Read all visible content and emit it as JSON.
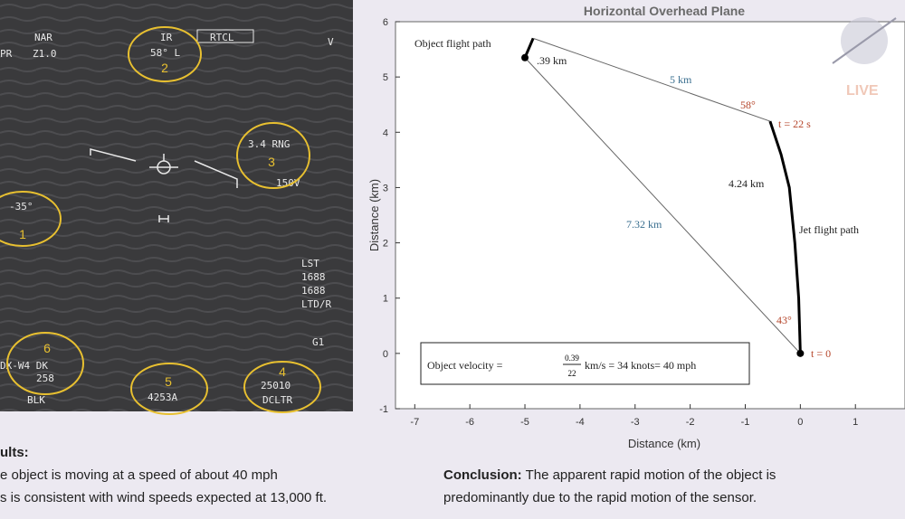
{
  "hud": {
    "texts": [
      "NAR",
      "Z1.0",
      "PR",
      "IR",
      "58° L",
      "RTCL",
      "V",
      "3.4 RNG",
      "150V",
      "-35°",
      "LST",
      "1688",
      "1688",
      "LTD/R",
      "G1",
      "DX-W4 DK",
      "258",
      "BLK",
      "4253A",
      "25010",
      "DCLTR"
    ],
    "circles": [
      "1",
      "2",
      "3",
      "4",
      "5",
      "6"
    ]
  },
  "chart_data": {
    "type": "line",
    "title": "Horizontal Overhead Plane",
    "x_label": "Distance (km)",
    "y_label": "Distance (km)",
    "xlim": [
      -7.35,
      1.9
    ],
    "ylim": [
      -1,
      6
    ],
    "xticks": [
      -7,
      -6,
      -5,
      -4,
      -3,
      -2,
      -1,
      0,
      1
    ],
    "yticks": [
      -1,
      0,
      1,
      2,
      3,
      4,
      5,
      6
    ],
    "series": [
      {
        "color": "#000000",
        "x": [
          0,
          -0.03,
          -0.1,
          -0.2,
          -0.35,
          -0.55
        ],
        "values": [
          0,
          1,
          2,
          3,
          3.6,
          4.2
        ]
      },
      {
        "color": "#000000",
        "x": [
          -5,
          -4.85
        ],
        "values": [
          5.35,
          5.7
        ]
      },
      {
        "color": "#666666",
        "x": [
          0,
          -5
        ],
        "values": [
          0,
          5.35
        ]
      },
      {
        "color": "#666666",
        "x": [
          -0.55,
          -4.85
        ],
        "values": [
          4.2,
          5.7
        ]
      }
    ],
    "annotations": [
      "Object flight path",
      ".39 km",
      "5 km",
      "58°",
      "t = 22 s",
      "4.24 km",
      "7.32 km",
      "Jet flight path",
      "43°",
      "t = 0"
    ],
    "velocity": [
      "Object velocity =",
      "0.39",
      "22",
      "km/s = 34 knots= 40 mph"
    ]
  },
  "logo": {
    "live": "LIVE"
  },
  "results": {
    "heading": "ults:",
    "lines": [
      "e object is moving at a speed of about 40 mph",
      "s is consistent with wind speeds expected at 13,000 ft."
    ]
  },
  "conclusion": {
    "label": "Conclusion:",
    "text": " The apparent rapid motion of the object is",
    "line2": "predominantly due to the rapid motion of the sensor."
  }
}
